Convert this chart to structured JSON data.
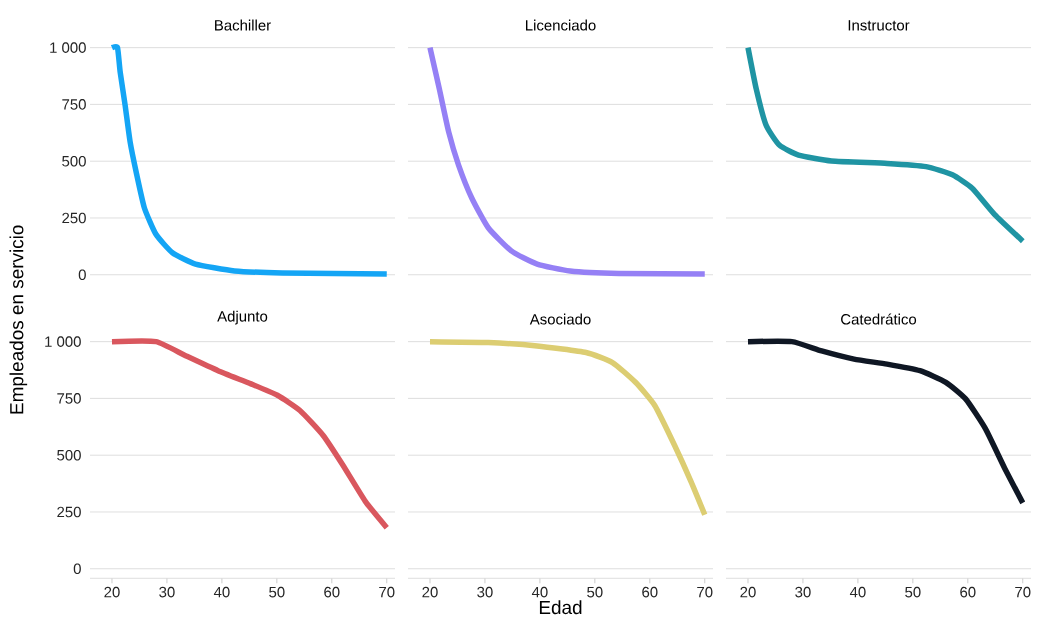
{
  "chart_data": [
    {
      "type": "line",
      "title": "Bachiller",
      "color": "#14a5f5",
      "x": [
        20,
        21,
        21.5,
        22.4,
        23.3,
        24.5,
        25.9,
        28,
        31,
        35.2,
        42.3,
        51,
        70
      ],
      "values": [
        1000,
        1000,
        891,
        745,
        585,
        441,
        294,
        178,
        97,
        47,
        17,
        8,
        3
      ],
      "xlim": [
        16,
        71.5
      ],
      "ylim": [
        0,
        1000
      ],
      "xticks": [
        20,
        30,
        40,
        50,
        60,
        70
      ],
      "yticks": [
        0,
        250,
        500,
        750,
        {
          "value": 1000,
          "label": "1 000"
        }
      ],
      "grid": "y",
      "tick_labels": "y"
    },
    {
      "type": "line",
      "title": "Licenciado",
      "color": "#9580f5",
      "x": [
        20,
        21.7,
        23.4,
        25.2,
        27.6,
        30.6,
        34.8,
        39.5,
        45.5,
        54.4,
        70
      ],
      "values": [
        1000,
        818,
        629,
        483,
        338,
        207,
        105,
        47,
        17,
        6,
        3
      ],
      "xlim": [
        16,
        71.5
      ],
      "ylim": [
        0,
        1000
      ],
      "xticks": [
        20,
        30,
        40,
        50,
        60,
        70
      ],
      "yticks": [
        0,
        250,
        500,
        750,
        1000
      ],
      "grid": "y",
      "tick_labels": false
    },
    {
      "type": "line",
      "title": "Instructor",
      "color": "#1f94a3",
      "x": [
        20,
        21.5,
        23.3,
        25.7,
        29.2,
        35.2,
        45.3,
        52.4,
        57.2,
        60.8,
        64.9,
        70
      ],
      "values": [
        1000,
        818,
        658,
        571,
        527,
        501,
        490,
        476,
        440,
        381,
        265,
        148
      ],
      "xlim": [
        16,
        71.5
      ],
      "ylim": [
        0,
        1000
      ],
      "xticks": [
        20,
        30,
        40,
        50,
        60,
        70
      ],
      "yticks": [
        0,
        250,
        500,
        750,
        1000
      ],
      "grid": "y",
      "tick_labels": false
    },
    {
      "type": "line",
      "title": "Adjunto",
      "ylabel": "Empleados en servicio",
      "color": "#d9575e",
      "x": [
        20,
        28,
        33.4,
        39.3,
        45.3,
        50.1,
        54.2,
        58.4,
        62,
        66.1,
        70
      ],
      "values": [
        1000,
        1000,
        938,
        872,
        814,
        764,
        697,
        588,
        457,
        297,
        181
      ],
      "xlim": [
        16,
        71.5
      ],
      "ylim": [
        0,
        1000
      ],
      "xticks": [
        20,
        30,
        40,
        50,
        60,
        70
      ],
      "yticks": [
        0,
        250,
        500,
        750,
        {
          "value": 1000,
          "label": "1 000"
        }
      ],
      "grid": "y"
    },
    {
      "type": "line",
      "title": "Asociado",
      "xlabel": "Edad",
      "color": "#dccd72",
      "x": [
        20,
        30.6,
        39.5,
        48.4,
        53.2,
        57.4,
        60.9,
        64.5,
        67.5,
        70
      ],
      "values": [
        1000,
        996,
        981,
        952,
        908,
        821,
        719,
        544,
        384,
        238
      ],
      "xlim": [
        16,
        71.5
      ],
      "ylim": [
        0,
        1000
      ],
      "xticks": [
        20,
        30,
        40,
        50,
        60,
        70
      ],
      "yticks": [
        0,
        250,
        500,
        750,
        1000
      ],
      "grid": "y",
      "tick_labels": "x"
    },
    {
      "type": "line",
      "title": "Catedrático",
      "color": "#0f1724",
      "x": [
        20,
        28,
        33.4,
        39.3,
        45.3,
        51.3,
        56,
        59.6,
        63.2,
        66.7,
        70
      ],
      "values": [
        1000,
        1000,
        959,
        923,
        901,
        872,
        821,
        748,
        617,
        443,
        290
      ],
      "xlim": [
        16,
        71.5
      ],
      "ylim": [
        0,
        1000
      ],
      "xticks": [
        20,
        30,
        40,
        50,
        60,
        70
      ],
      "yticks": [
        0,
        250,
        500,
        750,
        1000
      ],
      "grid": "y",
      "tick_labels": "x"
    }
  ]
}
